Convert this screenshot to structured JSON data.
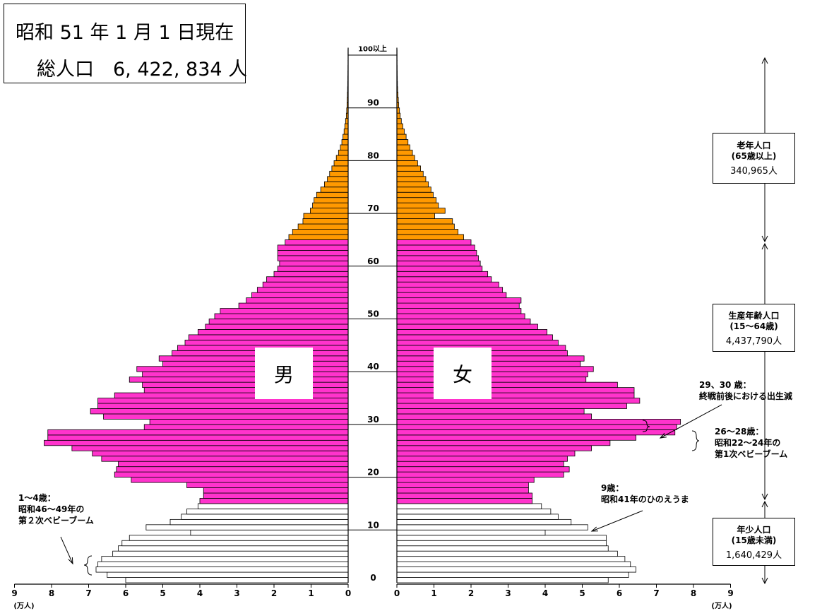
{
  "title": {
    "line1": "昭和 51 年 1 月 1 日現在",
    "line2": "総人口　6, 422, 834 人"
  },
  "labels": {
    "male": "男",
    "female": "女",
    "unit_left": "(万人)",
    "unit_right": "(万人)"
  },
  "groups": {
    "elderly": {
      "name": "老年人口",
      "range": "(65歳以上)",
      "count": "340,965人"
    },
    "working": {
      "name": "生産年齢人口",
      "range": "(15～64歳)",
      "count": "4,437,790人"
    },
    "young": {
      "name": "年少人口",
      "range": "(15歳未満)",
      "count": "1,640,429人"
    }
  },
  "annotations": {
    "a2930": {
      "line1": "29、30 歳：",
      "line2": "終戦前後における出生減"
    },
    "a2628": {
      "line1": "26～28歳：",
      "line2": "昭和22～24年の",
      "line3": "第1次ベビーブーム"
    },
    "a9": {
      "line1": "9歳：",
      "line2": "昭和41年のひのえうま"
    },
    "a14": {
      "line1": "1～4歳：",
      "line2": "昭和46～49年の",
      "line3": "第２次ベビーブーム"
    }
  },
  "colors": {
    "elderly": "#ff9900",
    "working": "#ff33cc",
    "young": "#ffffff",
    "outline": "#000000"
  },
  "chart_data": {
    "type": "bar",
    "orientation": "horizontal population pyramid",
    "x_unit": "万人",
    "x_ticks": [
      0,
      1,
      2,
      3,
      4,
      5,
      6,
      7,
      8,
      9
    ],
    "age_ticks": [
      0,
      10,
      20,
      30,
      40,
      50,
      60,
      70,
      80,
      90
    ],
    "top_label": "100以上",
    "xlim": [
      0,
      9
    ],
    "ages": [
      0,
      1,
      2,
      3,
      4,
      5,
      6,
      7,
      8,
      9,
      10,
      11,
      12,
      13,
      14,
      15,
      16,
      17,
      18,
      19,
      20,
      21,
      22,
      23,
      24,
      25,
      26,
      27,
      28,
      29,
      30,
      31,
      32,
      33,
      34,
      35,
      36,
      37,
      38,
      39,
      40,
      41,
      42,
      43,
      44,
      45,
      46,
      47,
      48,
      49,
      50,
      51,
      52,
      53,
      54,
      55,
      56,
      57,
      58,
      59,
      60,
      61,
      62,
      63,
      64,
      65,
      66,
      67,
      68,
      69,
      70,
      71,
      72,
      73,
      74,
      75,
      76,
      77,
      78,
      79,
      80,
      81,
      82,
      83,
      84,
      85,
      86,
      87,
      88,
      89,
      90,
      91,
      92,
      93,
      94,
      95,
      96,
      97,
      98,
      99,
      100
    ],
    "series": [
      {
        "name": "男",
        "values": [
          6.0,
          6.5,
          6.8,
          6.75,
          6.65,
          6.35,
          6.2,
          6.1,
          5.9,
          4.25,
          5.45,
          4.8,
          4.5,
          4.35,
          4.05,
          4.0,
          3.9,
          3.9,
          4.35,
          5.85,
          6.3,
          6.25,
          6.2,
          6.65,
          6.9,
          7.45,
          8.2,
          8.1,
          8.1,
          5.5,
          5.35,
          6.6,
          6.95,
          6.75,
          6.75,
          6.3,
          5.5,
          5.55,
          5.9,
          5.55,
          5.7,
          5.0,
          5.1,
          4.75,
          4.6,
          4.4,
          4.3,
          4.05,
          3.85,
          3.75,
          3.6,
          3.45,
          2.95,
          2.75,
          2.6,
          2.45,
          2.3,
          2.2,
          2.0,
          1.9,
          1.85,
          1.9,
          1.9,
          1.9,
          1.7,
          1.6,
          1.5,
          1.35,
          1.22,
          1.2,
          1.02,
          0.96,
          0.92,
          0.85,
          0.74,
          0.64,
          0.56,
          0.5,
          0.44,
          0.38,
          0.32,
          0.26,
          0.21,
          0.17,
          0.14,
          0.11,
          0.09,
          0.07,
          0.05,
          0.04,
          0.03,
          0.025,
          0.02,
          0.015,
          0.012,
          0.01,
          0.008,
          0.006,
          0.004,
          0.003,
          0.004
        ]
      },
      {
        "name": "女",
        "values": [
          5.7,
          6.25,
          6.45,
          6.3,
          6.15,
          5.95,
          5.7,
          5.65,
          5.65,
          4.0,
          5.15,
          4.7,
          4.35,
          4.15,
          3.9,
          3.65,
          3.65,
          3.55,
          3.55,
          3.7,
          4.5,
          4.65,
          4.5,
          4.6,
          4.8,
          5.25,
          5.75,
          6.45,
          7.5,
          7.55,
          7.65,
          5.25,
          5.05,
          6.2,
          6.55,
          6.4,
          6.4,
          5.95,
          5.1,
          5.15,
          5.3,
          4.95,
          5.05,
          4.6,
          4.55,
          4.35,
          4.2,
          4.05,
          3.8,
          3.6,
          3.45,
          3.35,
          3.3,
          3.35,
          2.95,
          2.85,
          2.75,
          2.55,
          2.45,
          2.3,
          2.25,
          2.2,
          2.15,
          2.1,
          2.0,
          1.8,
          1.65,
          1.55,
          1.5,
          1.02,
          1.3,
          1.12,
          1.06,
          0.98,
          0.92,
          0.85,
          0.78,
          0.71,
          0.64,
          0.56,
          0.48,
          0.42,
          0.35,
          0.3,
          0.25,
          0.2,
          0.16,
          0.12,
          0.09,
          0.07,
          0.05,
          0.04,
          0.03,
          0.02,
          0.015,
          0.012,
          0.01,
          0.008,
          0.006,
          0.005,
          0.005
        ]
      }
    ]
  }
}
